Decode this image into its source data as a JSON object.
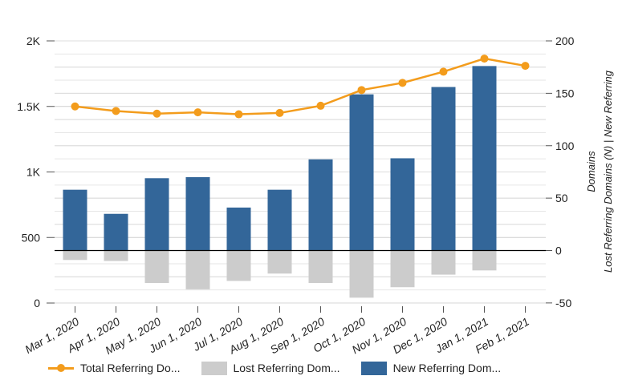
{
  "chart_data": {
    "type": "bar",
    "title": "",
    "categories": [
      "Mar 1, 2020",
      "Apr 1, 2020",
      "May 1, 2020",
      "Jun 1, 2020",
      "Jul 1, 2020",
      "Aug 1, 2020",
      "Sep 1, 2020",
      "Oct 1, 2020",
      "Nov 1, 2020",
      "Dec 1, 2020",
      "Jan 1, 2021",
      "Feb 1, 2021"
    ],
    "left_axis": {
      "label": "",
      "ticks": [
        "0",
        "500",
        "1K",
        "1.5K",
        "2K"
      ],
      "range": [
        0,
        2000
      ]
    },
    "right_axis": {
      "label_line1": "Lost Referring Domains (N) | New Referring",
      "label_line2": "Domains",
      "ticks": [
        "-50",
        "0",
        "50",
        "100",
        "150",
        "200"
      ],
      "range": [
        -50,
        200
      ]
    },
    "series": [
      {
        "name": "Total Referring Do...",
        "type": "line",
        "axis": "left",
        "color": "#f39c1c",
        "values": [
          1500,
          1465,
          1445,
          1455,
          1440,
          1450,
          1505,
          1625,
          1680,
          1765,
          1865,
          1810
        ]
      },
      {
        "name": "Lost Referring Dom...",
        "type": "bar",
        "axis": "right",
        "color": "#cccccc",
        "values": [
          -9,
          -10,
          -31,
          -37,
          -29,
          -22,
          -31,
          -45,
          -35,
          -23,
          -19,
          0
        ]
      },
      {
        "name": "New Referring Dom...",
        "type": "bar",
        "axis": "right",
        "color": "#336699",
        "values": [
          58,
          35,
          69,
          70,
          41,
          58,
          87,
          149,
          88,
          156,
          176,
          0
        ]
      }
    ],
    "grid": true,
    "legend_position": "bottom"
  }
}
